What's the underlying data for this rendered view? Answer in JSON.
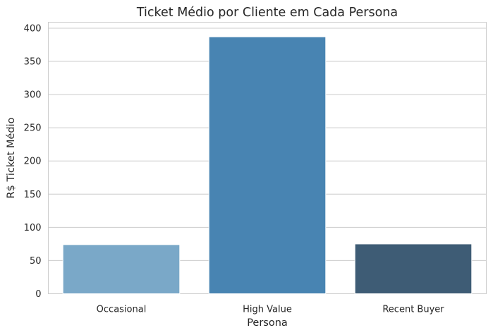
{
  "chart_data": {
    "type": "bar",
    "title": "Ticket Médio por Cliente em Cada Persona",
    "xlabel": "Persona",
    "ylabel": "R$ Ticket Médio",
    "categories": [
      "Occasional",
      "High Value",
      "Recent Buyer"
    ],
    "values": [
      74,
      387,
      75
    ],
    "colors": [
      "#7aa8c8",
      "#4884b2",
      "#3e5c75"
    ],
    "ylim": [
      0,
      409
    ],
    "yticks": [
      0,
      50,
      100,
      150,
      200,
      250,
      300,
      350,
      400
    ],
    "grid": "horizontal",
    "legend": "none"
  }
}
